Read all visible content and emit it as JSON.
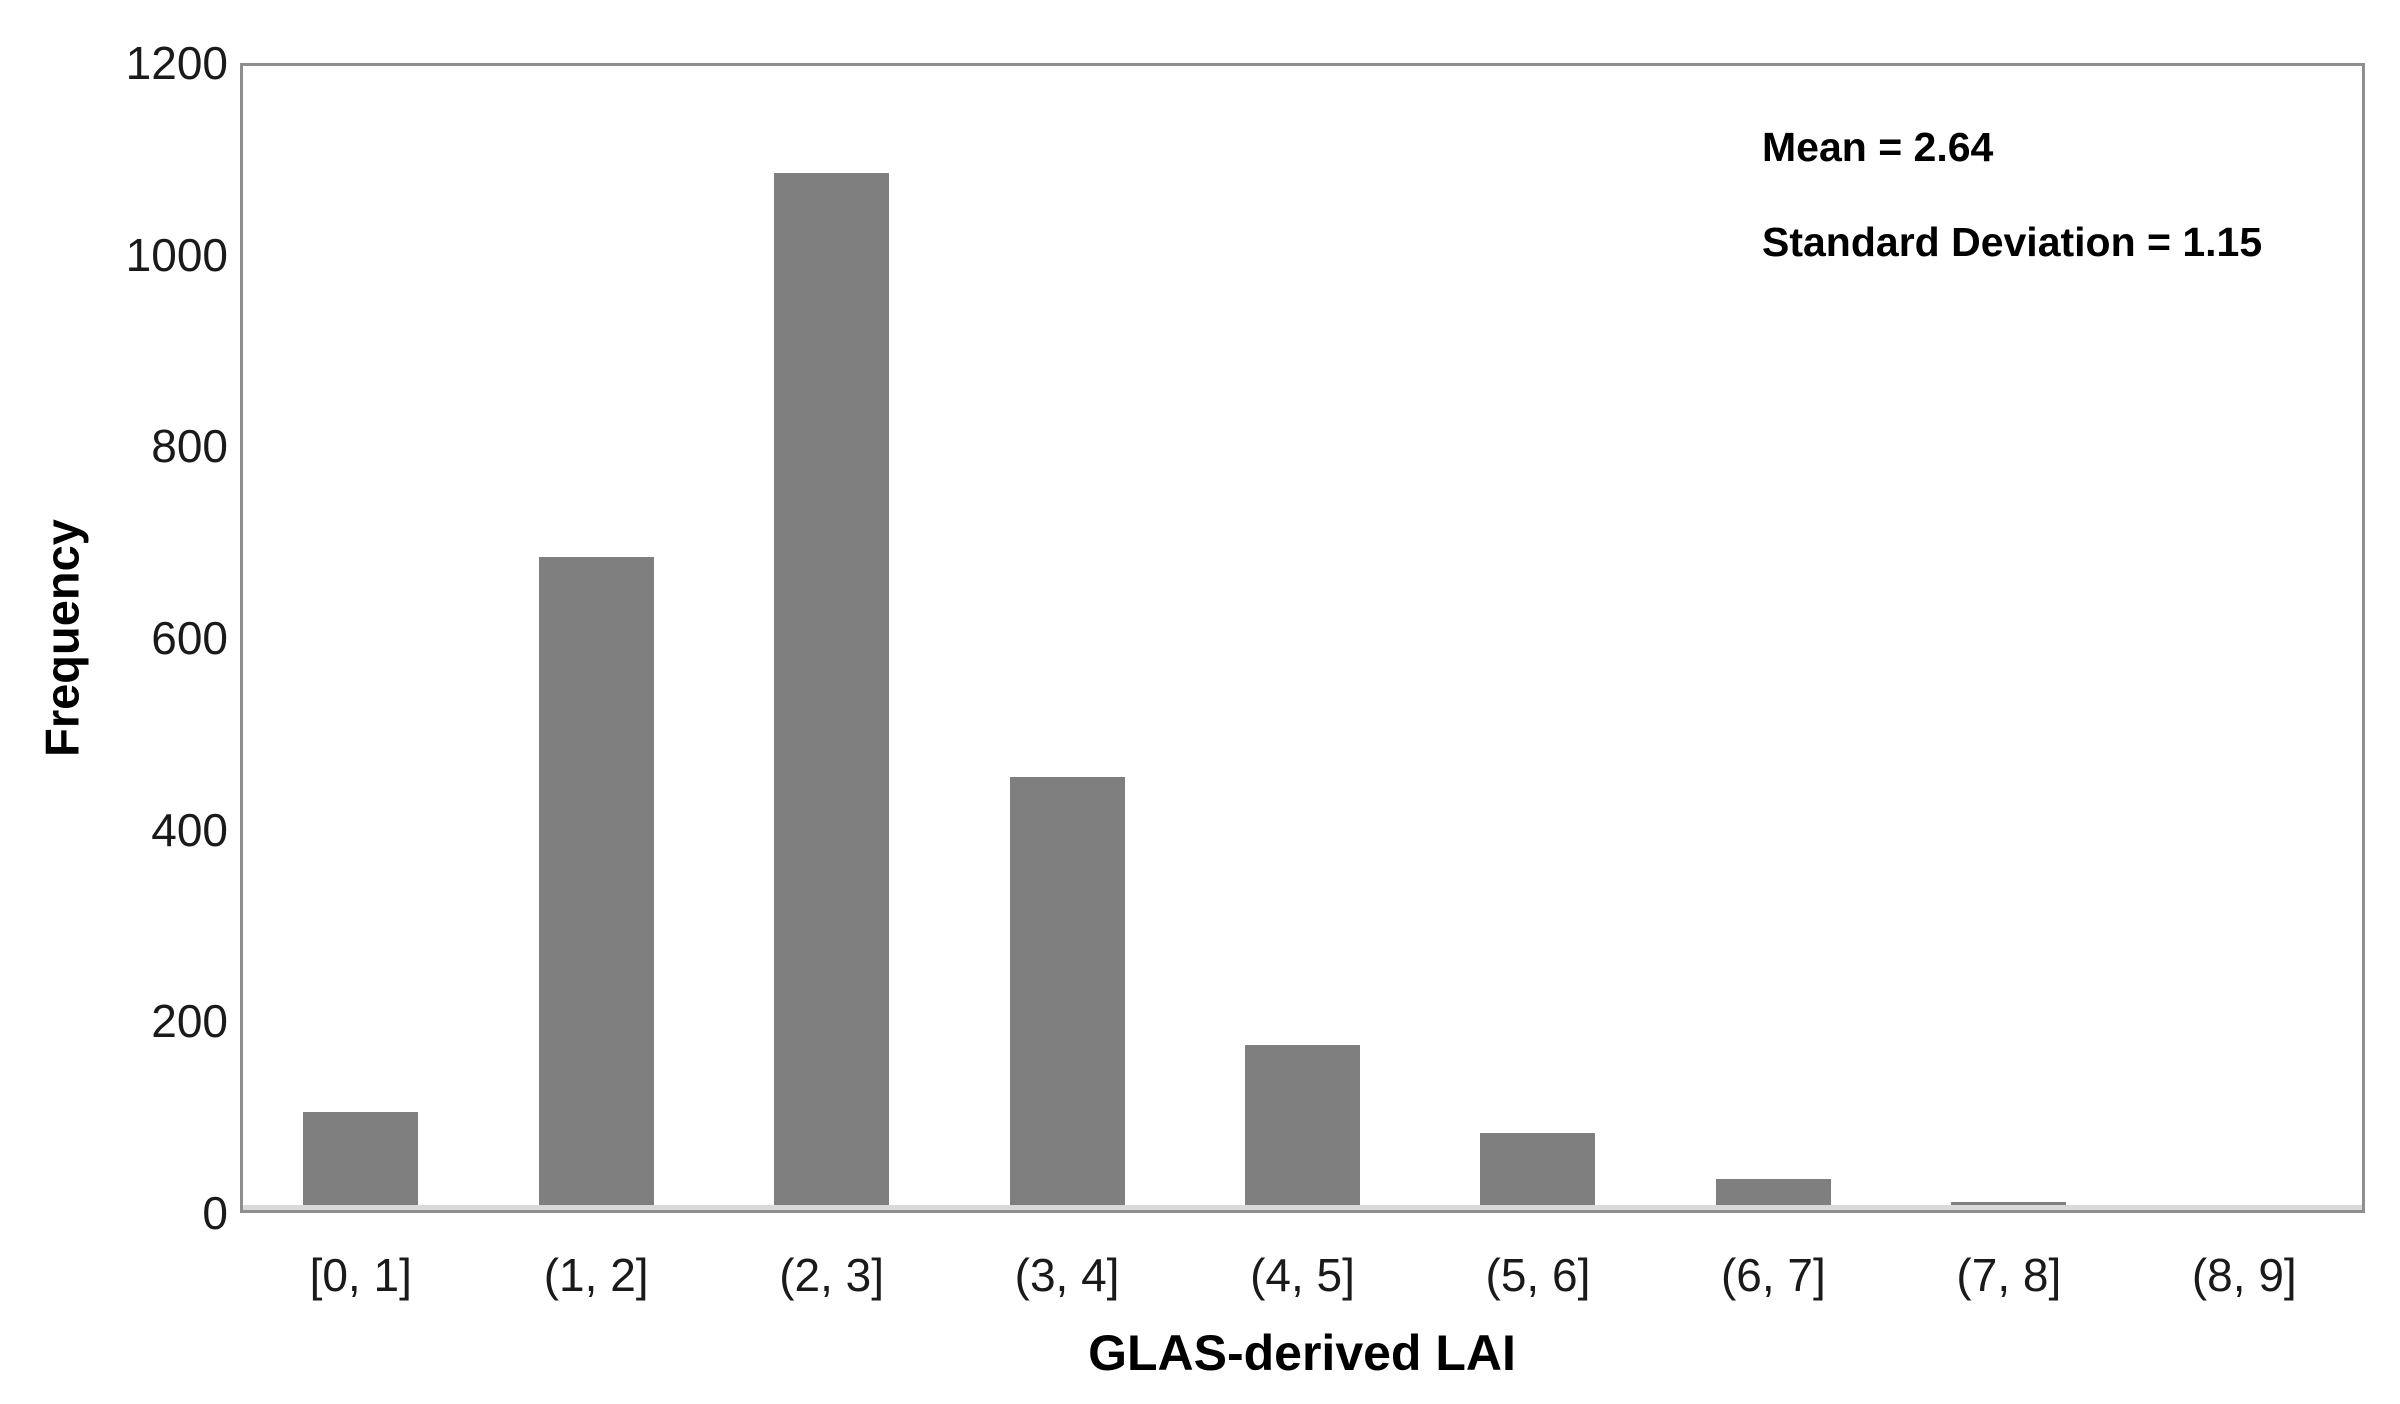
{
  "chart_data": {
    "type": "bar",
    "title": "",
    "categories": [
      "[0, 1]",
      "(1, 2]",
      "(2, 3]",
      "(3, 4]",
      "(4, 5]",
      "(5, 6]",
      "(6, 7]",
      "(7, 8]",
      "(8, 9]"
    ],
    "values": [
      105,
      685,
      1085,
      455,
      175,
      83,
      35,
      12,
      2
    ],
    "xlabel": "GLAS-derived LAI",
    "ylabel": "Frequency",
    "ylim": [
      0,
      1200
    ],
    "yticks": [
      0,
      200,
      400,
      600,
      800,
      1000,
      1200
    ],
    "grid": false,
    "legend": "none",
    "bar_color": "#7f7f7f",
    "frame_color": "#8e8e8e",
    "annotations": {
      "mean_label": "Mean = 2.64",
      "stddev_label": "Standard Deviation = 1.15"
    }
  }
}
